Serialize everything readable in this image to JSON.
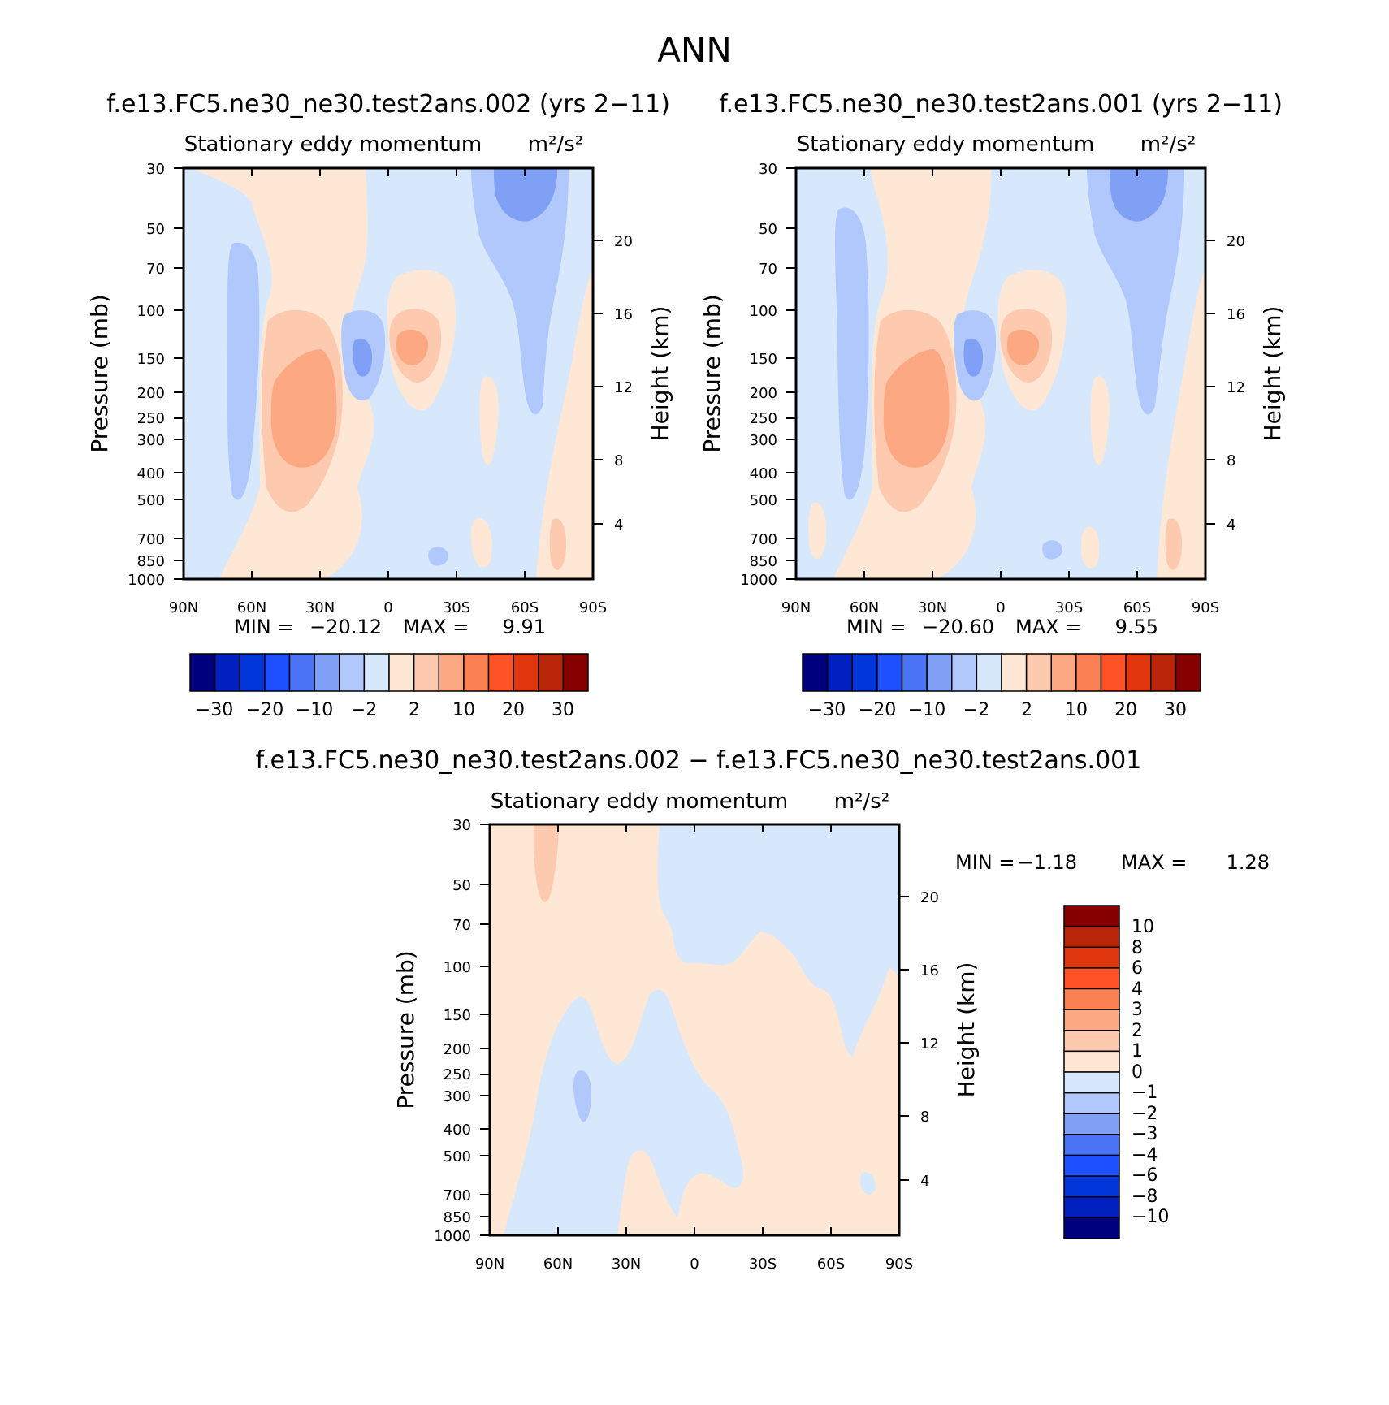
{
  "figure": {
    "title": "ANN",
    "colors": {
      "diverging_16": [
        "#00007f",
        "#0020bf",
        "#0036d9",
        "#1e50ff",
        "#4a74f5",
        "#7fa0f5",
        "#b0c8fb",
        "#d7e8fd",
        "#fee7d5",
        "#fdcab0",
        "#fca882",
        "#fb8054",
        "#ff5226",
        "#e0360d",
        "#b82508",
        "#870000"
      ],
      "diff_14": [
        "#00007f",
        "#0020bf",
        "#0036d9",
        "#1e50ff",
        "#4a74f5",
        "#7fa0f5",
        "#b0c8fb",
        "#d7e8fd",
        "#fee7d5",
        "#fdcab0",
        "#fca882",
        "#fb8054",
        "#ff5226",
        "#b82508"
      ]
    }
  },
  "chart_data": [
    {
      "id": "test",
      "type": "heatmap",
      "case_title": "f.e13.FC5.ne30_ne30.test2ans.002 (yrs 2−11)",
      "title": "Stationary eddy momentum",
      "units": "m²/s²",
      "ylabel": "Pressure (mb)",
      "y2label": "Height (km)",
      "x_ticks": [
        "90N",
        "60N",
        "30N",
        "0",
        "30S",
        "60S",
        "90S"
      ],
      "p_ticks": [
        "30",
        "50",
        "70",
        "100",
        "150",
        "200",
        "250",
        "300",
        "400",
        "500",
        "700",
        "850",
        "1000"
      ],
      "h_ticks": [
        "4",
        "8",
        "12",
        "16",
        "20"
      ],
      "min_label": "MIN =",
      "min_value": "−20.12",
      "max_label": "MAX =",
      "max_value": "9.91",
      "min": -20.12,
      "max": 9.91,
      "colorbar_labels": [
        "−30",
        "−20",
        "−10",
        "−2",
        "2",
        "10",
        "20",
        "30"
      ]
    },
    {
      "id": "control",
      "type": "heatmap",
      "case_title": "f.e13.FC5.ne30_ne30.test2ans.001 (yrs 2−11)",
      "title": "Stationary eddy momentum",
      "units": "m²/s²",
      "ylabel": "Pressure (mb)",
      "y2label": "Height (km)",
      "x_ticks": [
        "90N",
        "60N",
        "30N",
        "0",
        "30S",
        "60S",
        "90S"
      ],
      "p_ticks": [
        "30",
        "50",
        "70",
        "100",
        "150",
        "200",
        "250",
        "300",
        "400",
        "500",
        "700",
        "850",
        "1000"
      ],
      "h_ticks": [
        "4",
        "8",
        "12",
        "16",
        "20"
      ],
      "min_label": "MIN =",
      "min_value": "−20.60",
      "max_label": "MAX =",
      "max_value": "9.55",
      "min": -20.6,
      "max": 9.55,
      "colorbar_labels": [
        "−30",
        "−20",
        "−10",
        "−2",
        "2",
        "10",
        "20",
        "30"
      ]
    },
    {
      "id": "diff",
      "type": "heatmap",
      "case_title": "f.e13.FC5.ne30_ne30.test2ans.002 − f.e13.FC5.ne30_ne30.test2ans.001",
      "title": "Stationary eddy momentum",
      "units": "m²/s²",
      "ylabel": "Pressure (mb)",
      "y2label": "Height (km)",
      "x_ticks": [
        "90N",
        "60N",
        "30N",
        "0",
        "30S",
        "60S",
        "90S"
      ],
      "p_ticks": [
        "30",
        "50",
        "70",
        "100",
        "150",
        "200",
        "250",
        "300",
        "400",
        "500",
        "700",
        "850",
        "1000"
      ],
      "h_ticks": [
        "4",
        "8",
        "12",
        "16",
        "20"
      ],
      "min_label": "MIN =",
      "min_value": "−1.18",
      "max_label": "MAX =",
      "max_value": "1.28",
      "min": -1.18,
      "max": 1.28,
      "colorbar_labels": [
        "10",
        "8",
        "6",
        "4",
        "3",
        "2",
        "1",
        "0",
        "−1",
        "−2",
        "−3",
        "−4",
        "−6",
        "−8",
        "−10"
      ]
    }
  ]
}
